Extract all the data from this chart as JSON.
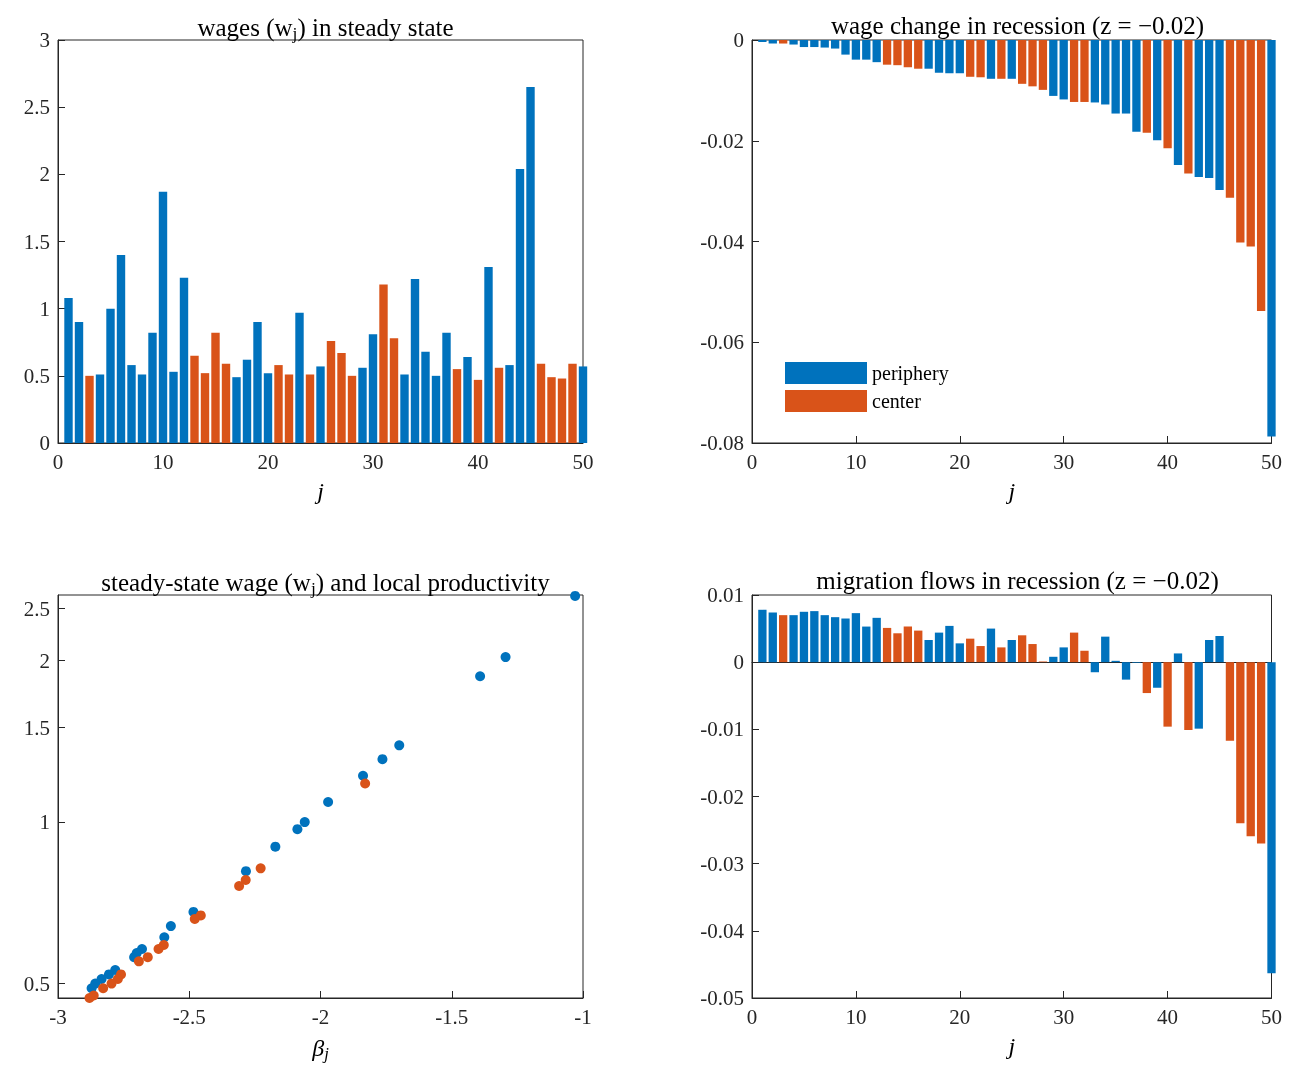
{
  "chart_data": [
    {
      "type": "bar",
      "title": "wages (w$_{j}$) in steady state",
      "xlabel": "j",
      "x": [
        1,
        2,
        3,
        4,
        5,
        6,
        7,
        8,
        9,
        10,
        11,
        12,
        13,
        14,
        15,
        16,
        17,
        18,
        19,
        20,
        21,
        22,
        23,
        24,
        25,
        26,
        27,
        28,
        29,
        30,
        31,
        32,
        33,
        34,
        35,
        36,
        37,
        38,
        39,
        40,
        41,
        42,
        43,
        44,
        45,
        46,
        47,
        48,
        49,
        50
      ],
      "xlim": [
        0,
        50
      ],
      "xticks": [
        0,
        10,
        20,
        30,
        40,
        50
      ],
      "ylim": [
        0,
        3
      ],
      "yticks": [
        0,
        0.5,
        1,
        1.5,
        2,
        2.5,
        3
      ],
      "series": [
        {
          "color": "#0072bd",
          "values": [
            1.08,
            0.9,
            null,
            0.51,
            1.0,
            1.4,
            0.58,
            0.51,
            0.82,
            1.87,
            0.53,
            1.23,
            null,
            null,
            null,
            null,
            0.49,
            0.62,
            0.9,
            0.52,
            null,
            null,
            0.97,
            null,
            0.57,
            null,
            null,
            null,
            0.56,
            0.81,
            null,
            null,
            0.51,
            1.22,
            0.68,
            0.5,
            0.82,
            null,
            0.64,
            null,
            1.31,
            null,
            0.58,
            2.04,
            2.65,
            null,
            null,
            null,
            null,
            0.57
          ]
        },
        {
          "color": "#d95319",
          "values": [
            null,
            null,
            0.5,
            null,
            null,
            null,
            null,
            null,
            null,
            null,
            null,
            null,
            0.65,
            0.52,
            0.82,
            0.59,
            null,
            null,
            null,
            null,
            0.58,
            0.51,
            null,
            0.51,
            null,
            0.76,
            0.67,
            0.5,
            null,
            null,
            1.18,
            0.78,
            null,
            null,
            null,
            null,
            null,
            0.55,
            null,
            0.47,
            null,
            0.56,
            null,
            null,
            null,
            0.59,
            0.49,
            0.48,
            0.59,
            null
          ]
        }
      ]
    },
    {
      "type": "bar",
      "title": "wage change in recession (z = −0.02)",
      "xlabel": "j",
      "legend": "bottom left",
      "x": [
        1,
        2,
        3,
        4,
        5,
        6,
        7,
        8,
        9,
        10,
        11,
        12,
        13,
        14,
        15,
        16,
        17,
        18,
        19,
        20,
        21,
        22,
        23,
        24,
        25,
        26,
        27,
        28,
        29,
        30,
        31,
        32,
        33,
        34,
        35,
        36,
        37,
        38,
        39,
        40,
        41,
        42,
        43,
        44,
        45,
        46,
        47,
        48,
        49,
        50
      ],
      "xlim": [
        0,
        50
      ],
      "xticks": [
        0,
        10,
        20,
        30,
        40,
        50
      ],
      "ylim": [
        -0.08,
        0
      ],
      "yticks": [
        -0.08,
        -0.06,
        -0.04,
        -0.02,
        0
      ],
      "series": [
        {
          "name": "periphery",
          "color": "#0072bd",
          "values": [
            -0.0004,
            -0.0007,
            null,
            -0.0009,
            -0.0014,
            -0.0014,
            -0.0015,
            -0.0017,
            -0.0029,
            -0.0039,
            -0.0039,
            -0.0044,
            null,
            null,
            null,
            null,
            -0.0057,
            -0.0065,
            -0.0066,
            -0.0066,
            null,
            null,
            -0.0077,
            null,
            -0.0077,
            null,
            null,
            null,
            -0.0111,
            -0.0118,
            null,
            null,
            -0.0124,
            -0.0128,
            -0.0146,
            -0.0146,
            -0.0182,
            null,
            -0.0199,
            null,
            -0.0248,
            null,
            -0.0272,
            -0.0274,
            -0.0298,
            null,
            null,
            null,
            null,
            -0.0787
          ]
        },
        {
          "name": "center",
          "color": "#d95319",
          "values": [
            null,
            null,
            -0.0007,
            null,
            null,
            null,
            null,
            null,
            null,
            null,
            null,
            null,
            -0.0049,
            -0.005,
            -0.0054,
            -0.0057,
            null,
            null,
            null,
            null,
            -0.0073,
            -0.0074,
            null,
            -0.0077,
            null,
            -0.0087,
            -0.0092,
            -0.0099,
            null,
            null,
            -0.0123,
            -0.0123,
            null,
            null,
            null,
            null,
            null,
            -0.0184,
            null,
            -0.0215,
            null,
            -0.0265,
            null,
            null,
            null,
            -0.0313,
            -0.0402,
            -0.041,
            -0.0538,
            null
          ]
        }
      ]
    },
    {
      "type": "scatter",
      "title": "steady-state wage (w$_{j}$) and local productivity",
      "xlabel": "β$_{j}$",
      "marker": "circle",
      "log": "y",
      "xlim": [
        -3,
        -1
      ],
      "xticks": [
        -3,
        -2.5,
        -2,
        -1.5,
        -1
      ],
      "ylim": [
        0.47,
        2.65
      ],
      "yticks": [
        0.5,
        1,
        1.5,
        2,
        2.5
      ],
      "series": [
        {
          "color": "#0072bd",
          "x": [
            -1.03,
            -1.295,
            -1.392,
            -1.7,
            -1.764,
            -1.838,
            -1.971,
            -2.06,
            -2.088,
            -2.172,
            -2.284,
            -2.484,
            -2.57,
            -2.595,
            -2.68,
            -2.7,
            -2.71,
            -2.782,
            -2.806,
            -2.834,
            -2.858,
            -2.872
          ],
          "values": [
            2.64,
            2.03,
            1.87,
            1.39,
            1.31,
            1.22,
            1.09,
            1.0,
            0.97,
            0.9,
            0.81,
            0.68,
            0.64,
            0.61,
            0.58,
            0.57,
            0.56,
            0.53,
            0.52,
            0.51,
            0.5,
            0.49
          ]
        },
        {
          "color": "#d95319",
          "x": [
            -1.83,
            -2.228,
            -2.285,
            -2.31,
            -2.456,
            -2.479,
            -2.597,
            -2.617,
            -2.658,
            -2.692,
            -2.76,
            -2.772,
            -2.796,
            -2.828,
            -2.864,
            -2.88
          ],
          "values": [
            1.18,
            0.82,
            0.78,
            0.76,
            0.67,
            0.66,
            0.59,
            0.58,
            0.56,
            0.55,
            0.52,
            0.51,
            0.5,
            0.49,
            0.475,
            0.47
          ]
        }
      ]
    },
    {
      "type": "bar",
      "title": "migration flows in recession (z = −0.02)",
      "xlabel": "j",
      "x": [
        1,
        2,
        3,
        4,
        5,
        6,
        7,
        8,
        9,
        10,
        11,
        12,
        13,
        14,
        15,
        16,
        17,
        18,
        19,
        20,
        21,
        22,
        23,
        24,
        25,
        26,
        27,
        28,
        29,
        30,
        31,
        32,
        33,
        34,
        35,
        36,
        37,
        38,
        39,
        40,
        41,
        42,
        43,
        44,
        45,
        46,
        47,
        48,
        49,
        50
      ],
      "xlim": [
        0,
        50
      ],
      "xticks": [
        0,
        10,
        20,
        30,
        40,
        50
      ],
      "ylim": [
        -0.05,
        0.01
      ],
      "yticks": [
        -0.05,
        -0.04,
        -0.03,
        -0.02,
        -0.01,
        0,
        0.01
      ],
      "series": [
        {
          "color": "#0072bd",
          "values": [
            0.0078,
            0.0074,
            null,
            0.007,
            0.0075,
            0.0076,
            0.007,
            0.0067,
            0.0065,
            0.0073,
            0.0053,
            0.0066,
            null,
            null,
            null,
            null,
            0.0033,
            0.0044,
            0.0054,
            0.0028,
            null,
            null,
            0.005,
            null,
            0.0033,
            null,
            null,
            null,
            0.0008,
            0.0022,
            null,
            null,
            -0.0015,
            0.0038,
            0.0002,
            -0.0026,
            -0.0001,
            null,
            -0.0038,
            null,
            0.0013,
            null,
            -0.0099,
            0.0033,
            0.0039,
            null,
            null,
            null,
            null,
            -0.0463
          ]
        },
        {
          "color": "#d95319",
          "values": [
            null,
            null,
            0.007,
            null,
            null,
            null,
            null,
            null,
            null,
            null,
            null,
            null,
            0.0051,
            0.0043,
            0.0053,
            0.0047,
            null,
            null,
            null,
            null,
            0.0035,
            0.0024,
            null,
            0.0022,
            null,
            0.004,
            0.0027,
            0.0001,
            null,
            null,
            0.0044,
            0.0017,
            null,
            null,
            null,
            null,
            null,
            -0.0046,
            null,
            -0.0096,
            null,
            -0.0101,
            null,
            null,
            null,
            -0.0117,
            -0.024,
            -0.0259,
            -0.027,
            null
          ]
        }
      ]
    }
  ]
}
